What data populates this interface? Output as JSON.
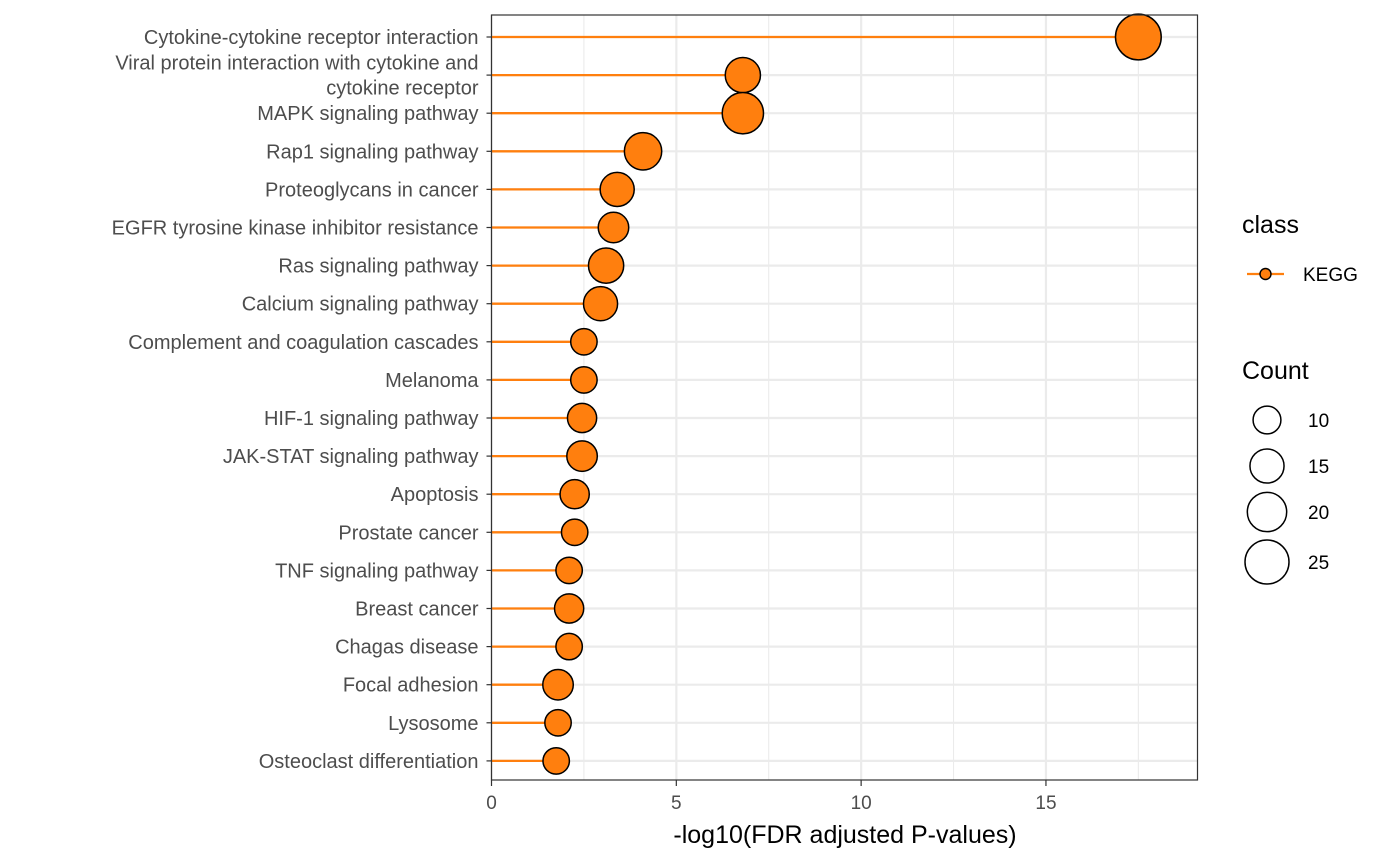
{
  "chart_data": {
    "type": "scatter",
    "style": "lollipop",
    "xlabel": "-log10(FDR adjusted P-values)",
    "ylabel": "",
    "xlim": [
      0,
      19.1
    ],
    "xticks": [
      0,
      5,
      10,
      15
    ],
    "xtick_labels": [
      "0",
      "5",
      "10",
      "15"
    ],
    "grid": true,
    "color": "#ff7f0e",
    "categories": [
      [
        "Cytokine-cytokine receptor interaction"
      ],
      [
        "Viral protein interaction with cytokine and",
        "cytokine receptor"
      ],
      [
        "MAPK signaling pathway"
      ],
      [
        "Rap1 signaling pathway"
      ],
      [
        "Proteoglycans in cancer"
      ],
      [
        "EGFR tyrosine kinase inhibitor resistance"
      ],
      [
        "Ras signaling pathway"
      ],
      [
        "Calcium signaling pathway"
      ],
      [
        "Complement and coagulation cascades"
      ],
      [
        "Melanoma"
      ],
      [
        "HIF-1 signaling pathway"
      ],
      [
        "JAK-STAT signaling pathway"
      ],
      [
        "Apoptosis"
      ],
      [
        "Prostate cancer"
      ],
      [
        "TNF signaling pathway"
      ],
      [
        "Breast cancer"
      ],
      [
        "Chagas disease"
      ],
      [
        "Focal adhesion"
      ],
      [
        "Lysosome"
      ],
      [
        "Osteoclast differentiation"
      ]
    ],
    "values": [
      17.5,
      6.8,
      6.8,
      4.1,
      3.4,
      3.3,
      3.1,
      2.95,
      2.5,
      2.5,
      2.45,
      2.45,
      2.25,
      2.25,
      2.1,
      2.1,
      2.1,
      1.8,
      1.8,
      1.75
    ],
    "counts": [
      27,
      16,
      22,
      18,
      15,
      12,
      16,
      15,
      9,
      9,
      11,
      12,
      11,
      9,
      9,
      11,
      9,
      12,
      9,
      9
    ],
    "legend": {
      "placement": "right",
      "color_title": "class",
      "color_entries": [
        {
          "label": "KEGG",
          "color": "#ff7f0e"
        }
      ],
      "size_title": "Count",
      "size_entries": [
        10,
        15,
        20,
        25
      ]
    }
  }
}
